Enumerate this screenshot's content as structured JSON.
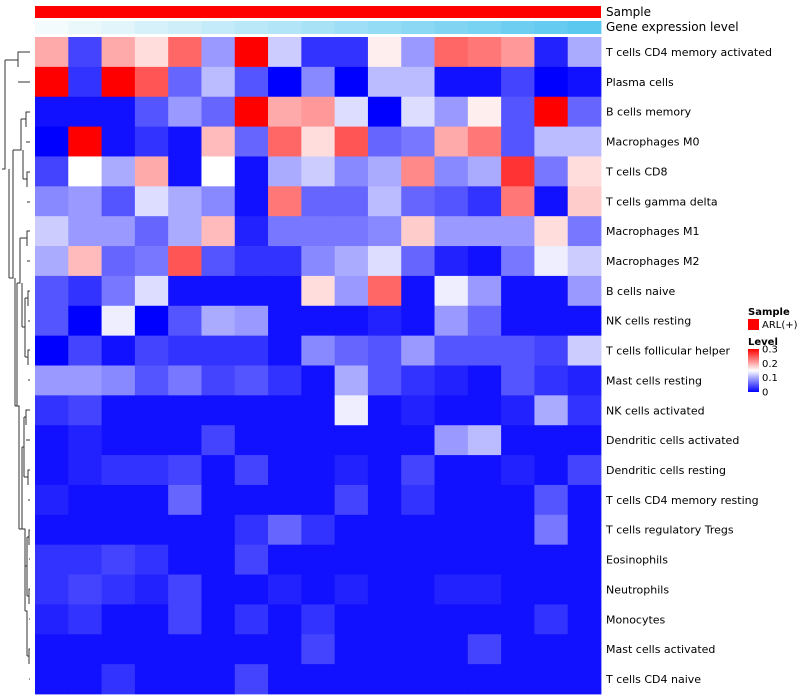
{
  "chart_data": {
    "type": "heatmap",
    "annotations": [
      {
        "name": "Sample",
        "color": "#ff0000"
      },
      {
        "name": "Gene expression level",
        "gradient": [
          "#f4fbfd",
          "#5bc8f0"
        ]
      }
    ],
    "rows": [
      "T cells CD4 memory activated",
      "Plasma cells",
      "B cells memory",
      "Macrophages M0",
      "T cells CD8",
      "T cells gamma delta",
      "Macrophages M1",
      "Macrophages M2",
      "B cells naive",
      "NK cells resting",
      "T cells follicular helper",
      "Mast cells resting",
      "NK cells activated",
      "Dendritic cells activated",
      "Dendritic cells resting",
      "T cells CD4 memory resting",
      "T cells regulatory  Tregs",
      "Eosinophils",
      "Neutrophils",
      "Monocytes",
      "Mast cells activated",
      "T cells CD4 naive"
    ],
    "values": [
      [
        0.2,
        0.04,
        0.2,
        0.17,
        0.24,
        0.09,
        0.3,
        0.12,
        0.03,
        0.03,
        0.16,
        0.09,
        0.24,
        0.23,
        0.21,
        0.02,
        0.1
      ],
      [
        0.3,
        0.03,
        0.3,
        0.25,
        0.06,
        0.11,
        0.05,
        0.0,
        0.08,
        0.0,
        0.11,
        0.11,
        0.01,
        0.01,
        0.04,
        0.0,
        0.01
      ],
      [
        0.01,
        0.01,
        0.01,
        0.05,
        0.09,
        0.06,
        0.3,
        0.2,
        0.21,
        0.13,
        0.0,
        0.13,
        0.09,
        0.16,
        0.05,
        0.3,
        0.06
      ],
      [
        0.0,
        0.3,
        0.01,
        0.03,
        0.01,
        0.19,
        0.06,
        0.24,
        0.17,
        0.25,
        0.06,
        0.07,
        0.2,
        0.23,
        0.05,
        0.11,
        0.11
      ],
      [
        0.04,
        0.15,
        0.1,
        0.2,
        0.01,
        0.15,
        0.01,
        0.1,
        0.12,
        0.08,
        0.1,
        0.22,
        0.08,
        0.1,
        0.27,
        0.07,
        0.17
      ],
      [
        0.08,
        0.09,
        0.05,
        0.13,
        0.1,
        0.08,
        0.01,
        0.23,
        0.06,
        0.06,
        0.11,
        0.06,
        0.05,
        0.03,
        0.23,
        0.01,
        0.18
      ],
      [
        0.12,
        0.09,
        0.09,
        0.06,
        0.1,
        0.19,
        0.02,
        0.07,
        0.07,
        0.07,
        0.08,
        0.18,
        0.09,
        0.09,
        0.09,
        0.17,
        0.07
      ],
      [
        0.1,
        0.19,
        0.06,
        0.07,
        0.25,
        0.05,
        0.03,
        0.03,
        0.08,
        0.1,
        0.13,
        0.06,
        0.02,
        0.01,
        0.07,
        0.14,
        0.12
      ],
      [
        0.05,
        0.03,
        0.07,
        0.13,
        0.01,
        0.01,
        0.01,
        0.01,
        0.17,
        0.09,
        0.24,
        0.01,
        0.14,
        0.09,
        0.01,
        0.01,
        0.09
      ],
      [
        0.05,
        0.0,
        0.14,
        0.0,
        0.05,
        0.1,
        0.09,
        0.01,
        0.01,
        0.01,
        0.02,
        0.01,
        0.09,
        0.06,
        0.01,
        0.01,
        0.01
      ],
      [
        0.0,
        0.04,
        0.01,
        0.04,
        0.03,
        0.03,
        0.03,
        0.01,
        0.08,
        0.06,
        0.05,
        0.09,
        0.05,
        0.05,
        0.05,
        0.04,
        0.12
      ],
      [
        0.09,
        0.09,
        0.08,
        0.05,
        0.07,
        0.04,
        0.05,
        0.03,
        0.01,
        0.1,
        0.05,
        0.03,
        0.02,
        0.01,
        0.05,
        0.03,
        0.02
      ],
      [
        0.03,
        0.04,
        0.01,
        0.01,
        0.01,
        0.01,
        0.01,
        0.01,
        0.01,
        0.14,
        0.01,
        0.02,
        0.01,
        0.01,
        0.02,
        0.1,
        0.03
      ],
      [
        0.01,
        0.02,
        0.01,
        0.01,
        0.01,
        0.04,
        0.01,
        0.01,
        0.01,
        0.01,
        0.01,
        0.01,
        0.09,
        0.11,
        0.01,
        0.01,
        0.01
      ],
      [
        0.01,
        0.02,
        0.03,
        0.03,
        0.04,
        0.01,
        0.04,
        0.01,
        0.01,
        0.02,
        0.01,
        0.04,
        0.01,
        0.01,
        0.02,
        0.01,
        0.04
      ],
      [
        0.02,
        0.01,
        0.01,
        0.01,
        0.06,
        0.01,
        0.01,
        0.01,
        0.01,
        0.04,
        0.01,
        0.03,
        0.01,
        0.01,
        0.01,
        0.05,
        0.01
      ],
      [
        0.01,
        0.01,
        0.01,
        0.01,
        0.01,
        0.01,
        0.03,
        0.06,
        0.03,
        0.01,
        0.01,
        0.01,
        0.01,
        0.01,
        0.01,
        0.07,
        0.01
      ],
      [
        0.03,
        0.03,
        0.04,
        0.03,
        0.01,
        0.01,
        0.04,
        0.01,
        0.01,
        0.01,
        0.01,
        0.01,
        0.01,
        0.01,
        0.01,
        0.01,
        0.01
      ],
      [
        0.03,
        0.04,
        0.03,
        0.02,
        0.04,
        0.01,
        0.01,
        0.02,
        0.01,
        0.02,
        0.01,
        0.01,
        0.02,
        0.02,
        0.01,
        0.01,
        0.01
      ],
      [
        0.02,
        0.03,
        0.01,
        0.01,
        0.04,
        0.01,
        0.03,
        0.01,
        0.03,
        0.01,
        0.01,
        0.01,
        0.01,
        0.01,
        0.01,
        0.03,
        0.01
      ],
      [
        0.01,
        0.01,
        0.01,
        0.01,
        0.01,
        0.01,
        0.01,
        0.01,
        0.04,
        0.01,
        0.01,
        0.01,
        0.01,
        0.04,
        0.01,
        0.01,
        0.01
      ],
      [
        0.01,
        0.01,
        0.03,
        0.01,
        0.01,
        0.01,
        0.04,
        0.01,
        0.01,
        0.01,
        0.01,
        0.01,
        0.01,
        0.01,
        0.01,
        0.01,
        0.01
      ]
    ],
    "color_scale": {
      "min": 0,
      "mid": 0.15,
      "max": 0.3,
      "low": "#0000ff",
      "midColor": "#ffffff",
      "high": "#ff0000"
    },
    "legend": {
      "sample_title": "Sample",
      "sample_entries": [
        {
          "label": "ARL(+)",
          "color": "#ff0000"
        }
      ],
      "level_title": "Level",
      "level_ticks": [
        {
          "value": 0.3,
          "label": "0.3"
        },
        {
          "value": 0.2,
          "label": "0.2"
        },
        {
          "value": 0.1,
          "label": "0.1"
        },
        {
          "value": 0,
          "label": "0"
        }
      ]
    }
  }
}
